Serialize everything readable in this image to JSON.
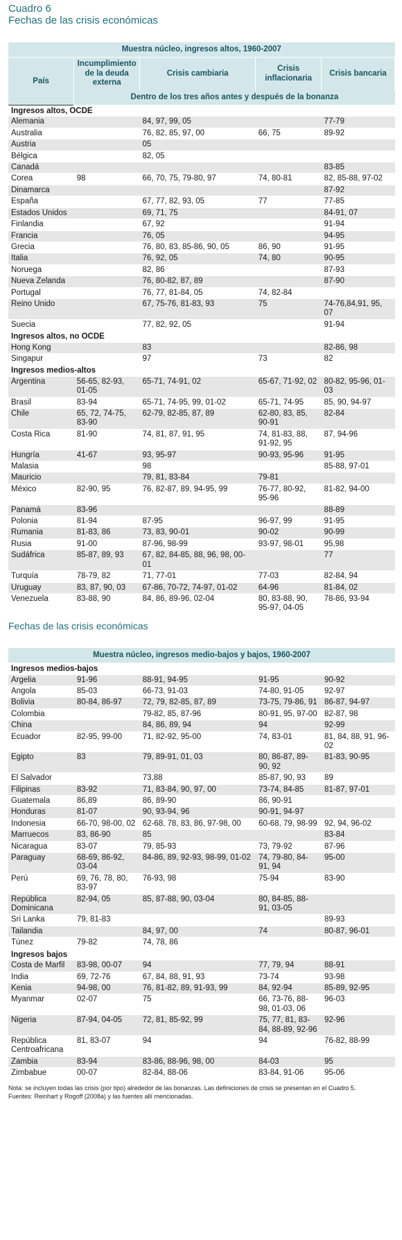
{
  "header": {
    "label": "Cuadro 6",
    "title": "Fechas de las crisis económicas"
  },
  "table1": {
    "caption": "Muestra núcleo, ingresos altos, 1960-2007",
    "columns": [
      "País",
      "Incumplimiento de la deuda externa",
      "Crisis cambiaria",
      "Crisis inflacionaria",
      "Crisis bancaria"
    ],
    "subheader": "Dentro de los tres años antes y después de la bonanza",
    "groups": [
      {
        "name": "Ingresos altos, OCDE",
        "rows": [
          [
            "Alemania",
            null,
            "84, 97, 99, 05",
            null,
            "77-79"
          ],
          [
            "Australia",
            null,
            "76, 82, 85, 97, 00",
            "66, 75",
            "89-92"
          ],
          [
            "Austria",
            null,
            "05",
            null,
            null
          ],
          [
            "Bélgica",
            null,
            "82, 05",
            null,
            null
          ],
          [
            "Canadá",
            null,
            null,
            null,
            "83-85"
          ],
          [
            "Corea",
            "98",
            "66, 70, 75, 79-80, 97",
            "74, 80-81",
            "82, 85-88, 97-02"
          ],
          [
            "Dinamarca",
            null,
            null,
            null,
            "87-92"
          ],
          [
            "España",
            null,
            "67, 77, 82, 93, 05",
            "77",
            "77-85"
          ],
          [
            "Estados Unidos",
            null,
            "69, 71, 75",
            null,
            "84-91, 07"
          ],
          [
            "Finlandia",
            null,
            "67, 92",
            null,
            "91-94"
          ],
          [
            "Francia",
            null,
            "76, 05",
            null,
            "94-95"
          ],
          [
            "Grecia",
            null,
            "76, 80, 83, 85-86, 90, 05",
            "86, 90",
            "91-95"
          ],
          [
            "Italia",
            null,
            "76, 92, 05",
            "74, 80",
            "90-95"
          ],
          [
            "Noruega",
            null,
            "82, 86",
            null,
            "87-93"
          ],
          [
            "Nueva Zelanda",
            null,
            "76, 80-82, 87, 89",
            null,
            "87-90"
          ],
          [
            "Portugal",
            null,
            "76, 77, 81-84, 05",
            "74, 82-84",
            null
          ],
          [
            "Reino Unido",
            null,
            "67, 75-76, 81-83, 93",
            "75",
            "74-76,84,91, 95, 07"
          ],
          [
            "Suecia",
            null,
            "77, 82, 92, 05",
            null,
            "91-94"
          ]
        ]
      },
      {
        "name": "Ingresos altos, no OCDE",
        "rows": [
          [
            "Hong Kong",
            null,
            "83",
            null,
            "82-86, 98"
          ],
          [
            "Singapur",
            null,
            "97",
            "73",
            "82"
          ]
        ]
      },
      {
        "name": "Ingresos medios-altos",
        "rows": [
          [
            "Argentina",
            "56-65, 82-93, 01-05",
            "65-71, 74-91, 02",
            "65-67, 71-92, 02",
            "80-82, 95-96, 01-03"
          ],
          [
            "Brasil",
            "83-94",
            "65-71, 74-95, 99, 01-02",
            "65-71, 74-95",
            "85, 90, 94-97"
          ],
          [
            "Chile",
            "65, 72, 74-75, 83-90",
            "62-79, 82-85, 87, 89",
            "62-80, 83, 85, 90-91",
            "82-84"
          ],
          [
            "Costa Rica",
            "81-90",
            "74, 81, 87, 91, 95",
            "74, 81-83, 88, 91-92, 95",
            "87, 94-96"
          ],
          [
            "Hungría",
            "41-67",
            "93, 95-97",
            "90-93, 95-96",
            "91-95"
          ],
          [
            "Malasia",
            null,
            "98",
            null,
            "85-88, 97-01"
          ],
          [
            "Mauricio",
            null,
            "79, 81, 83-84",
            "79-81",
            null
          ],
          [
            "México",
            "82-90, 95",
            "76, 82-87, 89, 94-95, 99",
            "76-77, 80-92, 95-96",
            "81-82, 94-00"
          ],
          [
            "Panamá",
            "83-96",
            null,
            null,
            "88-89"
          ],
          [
            "Polonia",
            "81-94",
            "87-95",
            "96-97, 99",
            "91-95"
          ],
          [
            "Rumania",
            "81-83, 86",
            "73, 83, 90-01",
            "90-02",
            "90-99"
          ],
          [
            "Rusia",
            "91-00",
            "87-96, 98-99",
            "93-97, 98-01",
            "95,98"
          ],
          [
            "Sudáfrica",
            "85-87, 89, 93",
            "67, 82, 84-85, 88, 96, 98, 00-01",
            null,
            "77"
          ],
          [
            "Turquía",
            "78-79, 82",
            "71, 77-01",
            "77-03",
            "82-84, 94"
          ],
          [
            "Uruguay",
            "83, 87, 90, 03",
            "67-86, 70-72, 74-97, 01-02",
            "64-96",
            "81-84, 02"
          ],
          [
            "Venezuela",
            "83-88, 90",
            "84, 86, 89-96, 02-04",
            "80, 83-88, 90, 95-97, 04-05",
            "78-86, 93-94"
          ]
        ]
      }
    ]
  },
  "subtitle2": "Fechas de las crisis económicas",
  "table2": {
    "caption": "Muestra núcleo, ingresos medio-bajos y bajos, 1960-2007",
    "groups": [
      {
        "name": "Ingresos medios-bajos",
        "rows": [
          [
            "Argelia",
            "91-96",
            "88-91, 94-95",
            "91-95",
            "90-92"
          ],
          [
            "Angola",
            "85-03",
            "66-73, 91-03",
            "74-80, 91-05",
            "92-97"
          ],
          [
            "Bolivia",
            "80-84, 86-97",
            "72, 79, 82-85, 87, 89",
            "73-75, 79-86, 91",
            "86-87, 94-97"
          ],
          [
            "Colombia",
            null,
            "79-82, 85, 87-96",
            "80-91, 95, 97-00",
            "82-87, 98"
          ],
          [
            "China",
            null,
            "84, 86, 89, 94",
            "94",
            "92-99"
          ],
          [
            "Ecuador",
            "82-95, 99-00",
            "71, 82-92, 95-00",
            "74, 83-01",
            "81, 84, 88, 91, 96-02"
          ],
          [
            "Egipto",
            "83",
            "79, 89-91, 01, 03",
            "80, 86-87, 89-90, 92",
            "81-83, 90-95"
          ],
          [
            "El Salvador",
            null,
            "73,88",
            "85-87, 90, 93",
            "89"
          ],
          [
            "Filipinas",
            "83-92",
            "71, 83-84, 90, 97, 00",
            "73-74, 84-85",
            "81-87, 97-01"
          ],
          [
            "Guatemala",
            "86,89",
            "86, 89-90",
            "86, 90-91",
            null
          ],
          [
            "Honduras",
            "81-07",
            "90, 93-94, 96",
            "90-91, 94-97",
            null
          ],
          [
            "Indonesia",
            "66-70, 98-00, 02",
            "62-68, 78, 83, 86, 97-98, 00",
            "60-68, 79, 98-99",
            "92, 94, 96-02"
          ],
          [
            "Marruecos",
            "83, 86-90",
            "85",
            null,
            "83-84"
          ],
          [
            "Nicaragua",
            "83-07",
            "79, 85-93",
            "73, 79-92",
            "87-96"
          ],
          [
            "Paraguay",
            "68-69, 86-92, 03-04",
            "84-86, 89, 92-93, 98-99, 01-02",
            "74, 79-80, 84-91, 94",
            "95-00"
          ],
          [
            "Perú",
            "69, 76, 78, 80, 83-97",
            "76-93, 98",
            "75-94",
            "83-90"
          ],
          [
            "República Dominicana",
            "82-94, 05",
            "85, 87-88, 90, 03-04",
            "80, 84-85, 88-91, 03-05",
            null
          ],
          [
            "Sri Lanka",
            "79, 81-83",
            null,
            null,
            "89-93"
          ],
          [
            "Tailandia",
            null,
            "84, 97, 00",
            "74",
            "80-87, 96-01"
          ],
          [
            "Túnez",
            "79-82",
            "74, 78, 86",
            null,
            null
          ]
        ]
      },
      {
        "name": "Ingresos bajos",
        "rows": [
          [
            "Costa de Marfil",
            "83-98, 00-07",
            "94",
            "77, 79, 94",
            "88-91"
          ],
          [
            "India",
            "69, 72-76",
            "67, 84, 88, 91, 93",
            "73-74",
            "93-98"
          ],
          [
            "Kenia",
            "94-98, 00",
            "76, 81-82, 89, 91-93, 99",
            "84, 92-94",
            "85-89, 92-95"
          ],
          [
            "Myanmar",
            "02-07",
            "75",
            "66, 73-76, 88-98, 01-03, 06",
            "96-03"
          ],
          [
            "Nigeria",
            "87-94, 04-05",
            "72, 81, 85-92, 99",
            "75, 77, 81, 83-84, 88-89, 92-96",
            "92-96"
          ],
          [
            "República Centroafricana",
            "81, 83-07",
            "94",
            "94",
            "76-82, 88-99"
          ],
          [
            "Zambia",
            "83-94",
            "83-86, 88-96, 98, 00",
            "84-03",
            "95"
          ],
          [
            "Zimbabue",
            "00-07",
            "82-84, 88-06",
            "83-84, 91-06",
            "95-06"
          ]
        ]
      }
    ]
  },
  "notes": [
    "Nota: se incluyen todas las crisis (por tipo) alrededor de las bonanzas. Las definiciones de crisis se presentan en el Cuadro 5.",
    "Fuentes: Reinhart y Rogoff (2008a) y las fuentes allí mencionadas."
  ]
}
